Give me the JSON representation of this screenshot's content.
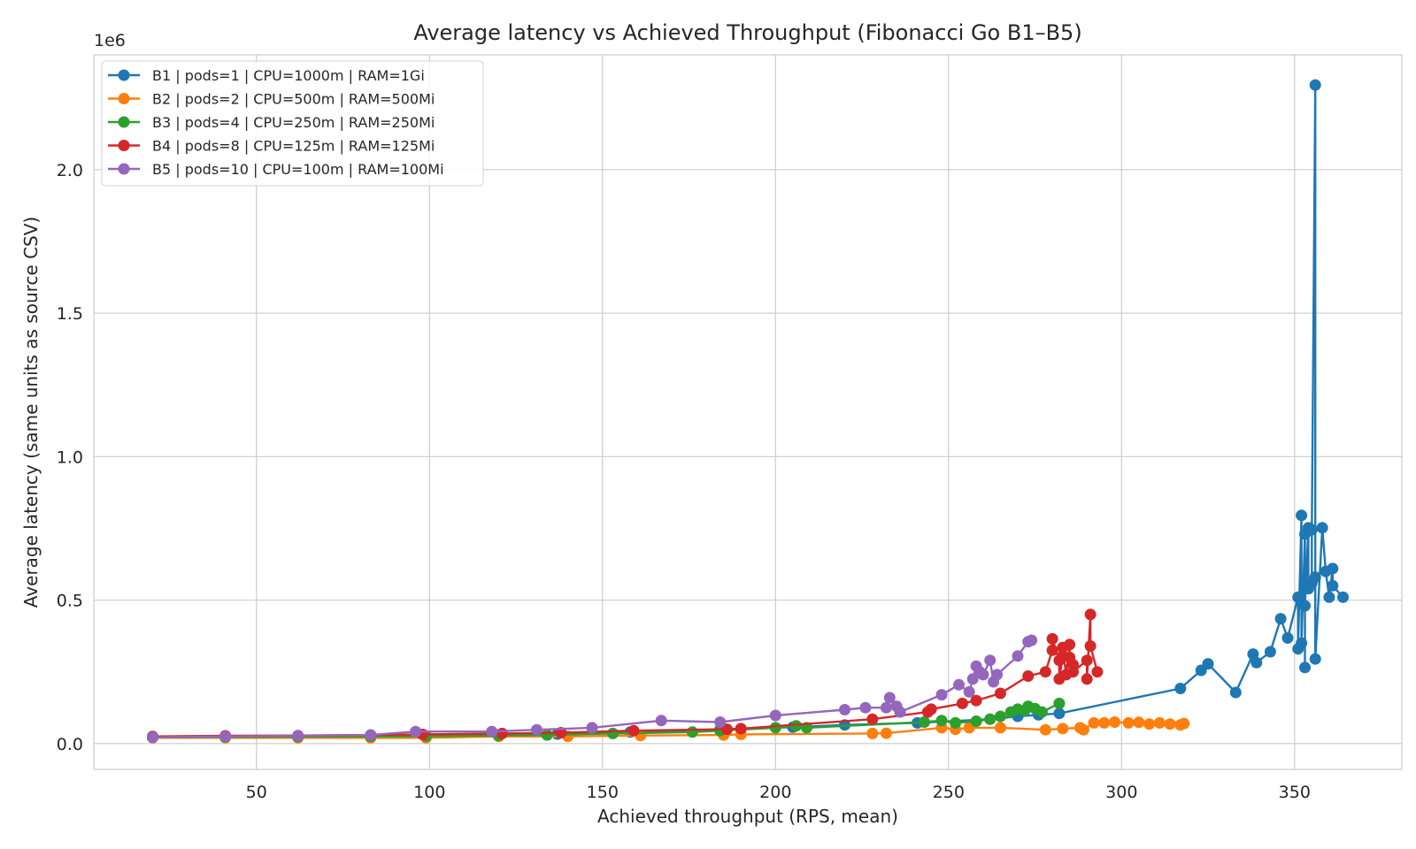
{
  "chart_data": {
    "type": "line",
    "title": "Average latency vs Achieved Throughput (Fibonacci Go B1–B5)",
    "xlabel": "Achieved throughput (RPS, mean)",
    "ylabel": "Average latency (same units as source CSV)",
    "y_offset_label": "1e6",
    "xlim": [
      3,
      381
    ],
    "ylim": [
      -90000,
      2400000
    ],
    "x_ticks": [
      50,
      100,
      150,
      200,
      250,
      300,
      350
    ],
    "x_tick_labels": [
      "50",
      "100",
      "150",
      "200",
      "250",
      "300",
      "350"
    ],
    "y_ticks": [
      0,
      500000,
      1000000,
      1500000,
      2000000
    ],
    "y_tick_labels": [
      "0.0",
      "0.5",
      "1.0",
      "1.5",
      "2.0"
    ],
    "grid": true,
    "legend_position": "top-left",
    "series": [
      {
        "name": "B1 | pods=1 | CPU=1000m | RAM=1Gi",
        "color": "#1f77b4",
        "points": [
          [
            20,
            22000
          ],
          [
            41,
            23000
          ],
          [
            62,
            24000
          ],
          [
            83,
            25000
          ],
          [
            99,
            27000
          ],
          [
            120,
            30000
          ],
          [
            137,
            33000
          ],
          [
            158,
            40000
          ],
          [
            184,
            50000
          ],
          [
            205,
            57000
          ],
          [
            220,
            65000
          ],
          [
            241,
            72000
          ],
          [
            262,
            85000
          ],
          [
            270,
            95000
          ],
          [
            276,
            100000
          ],
          [
            282,
            105000
          ],
          [
            317,
            192000
          ],
          [
            323,
            255000
          ],
          [
            325,
            278000
          ],
          [
            333,
            178000
          ],
          [
            338,
            312000
          ],
          [
            339,
            282000
          ],
          [
            343,
            320000
          ],
          [
            346,
            435000
          ],
          [
            348,
            368000
          ],
          [
            351,
            510000
          ],
          [
            351,
            330000
          ],
          [
            352,
            795000
          ],
          [
            352,
            350000
          ],
          [
            353,
            730000
          ],
          [
            353,
            265000
          ],
          [
            353,
            480000
          ],
          [
            354,
            752000
          ],
          [
            354,
            540000
          ],
          [
            355,
            560000
          ],
          [
            355,
            745000
          ],
          [
            356,
            2295000
          ],
          [
            356,
            580000
          ],
          [
            356,
            295000
          ],
          [
            358,
            752000
          ],
          [
            359,
            600000
          ],
          [
            360,
            510000
          ],
          [
            361,
            610000
          ],
          [
            361,
            550000
          ],
          [
            364,
            510000
          ]
        ]
      },
      {
        "name": "B2 | pods=2 | CPU=500m | RAM=500Mi",
        "color": "#ff7f0e",
        "points": [
          [
            20,
            20000
          ],
          [
            41,
            20000
          ],
          [
            62,
            20000
          ],
          [
            83,
            20000
          ],
          [
            99,
            20000
          ],
          [
            120,
            25000
          ],
          [
            140,
            25000
          ],
          [
            161,
            28000
          ],
          [
            185,
            30000
          ],
          [
            190,
            32000
          ],
          [
            228,
            35000
          ],
          [
            232,
            36000
          ],
          [
            248,
            55000
          ],
          [
            252,
            50000
          ],
          [
            256,
            55000
          ],
          [
            265,
            55000
          ],
          [
            278,
            48000
          ],
          [
            283,
            52000
          ],
          [
            288,
            55000
          ],
          [
            289,
            48000
          ],
          [
            292,
            72000
          ],
          [
            295,
            72000
          ],
          [
            298,
            75000
          ],
          [
            302,
            72000
          ],
          [
            305,
            74000
          ],
          [
            308,
            68000
          ],
          [
            311,
            72000
          ],
          [
            314,
            68000
          ],
          [
            317,
            65000
          ],
          [
            318,
            70000
          ]
        ]
      },
      {
        "name": "B3 | pods=4 | CPU=250m | RAM=250Mi",
        "color": "#2ca02c",
        "points": [
          [
            20,
            22000
          ],
          [
            41,
            23000
          ],
          [
            62,
            24000
          ],
          [
            83,
            25000
          ],
          [
            99,
            26000
          ],
          [
            120,
            28000
          ],
          [
            134,
            30000
          ],
          [
            153,
            35000
          ],
          [
            176,
            40000
          ],
          [
            184,
            45000
          ],
          [
            200,
            55000
          ],
          [
            206,
            62000
          ],
          [
            209,
            55000
          ],
          [
            243,
            75000
          ],
          [
            248,
            80000
          ],
          [
            252,
            72000
          ],
          [
            258,
            78000
          ],
          [
            262,
            85000
          ],
          [
            265,
            95000
          ],
          [
            268,
            110000
          ],
          [
            270,
            120000
          ],
          [
            272,
            115000
          ],
          [
            273,
            130000
          ],
          [
            275,
            122000
          ],
          [
            277,
            110000
          ],
          [
            282,
            140000
          ]
        ]
      },
      {
        "name": "B4 | pods=8 | CPU=125m | RAM=125Mi",
        "color": "#d62728",
        "points": [
          [
            20,
            25000
          ],
          [
            41,
            27000
          ],
          [
            62,
            28000
          ],
          [
            83,
            30000
          ],
          [
            98,
            32000
          ],
          [
            121,
            35000
          ],
          [
            138,
            38000
          ],
          [
            159,
            45000
          ],
          [
            186,
            50000
          ],
          [
            190,
            52000
          ],
          [
            228,
            85000
          ],
          [
            244,
            110000
          ],
          [
            245,
            120000
          ],
          [
            254,
            140000
          ],
          [
            258,
            150000
          ],
          [
            265,
            175000
          ],
          [
            273,
            235000
          ],
          [
            278,
            250000
          ],
          [
            280,
            325000
          ],
          [
            280,
            365000
          ],
          [
            282,
            290000
          ],
          [
            282,
            225000
          ],
          [
            283,
            305000
          ],
          [
            283,
            335000
          ],
          [
            284,
            240000
          ],
          [
            285,
            345000
          ],
          [
            285,
            300000
          ],
          [
            286,
            275000
          ],
          [
            286,
            250000
          ],
          [
            290,
            290000
          ],
          [
            290,
            225000
          ],
          [
            291,
            450000
          ],
          [
            291,
            340000
          ],
          [
            293,
            250000
          ]
        ]
      },
      {
        "name": "B5 | pods=10 | CPU=100m | RAM=100Mi",
        "color": "#9467bd",
        "points": [
          [
            20,
            22000
          ],
          [
            41,
            25000
          ],
          [
            62,
            27000
          ],
          [
            83,
            30000
          ],
          [
            96,
            42000
          ],
          [
            118,
            42000
          ],
          [
            131,
            48000
          ],
          [
            147,
            55000
          ],
          [
            167,
            80000
          ],
          [
            184,
            75000
          ],
          [
            200,
            98000
          ],
          [
            220,
            118000
          ],
          [
            226,
            125000
          ],
          [
            232,
            125000
          ],
          [
            233,
            160000
          ],
          [
            235,
            130000
          ],
          [
            236,
            110000
          ],
          [
            248,
            170000
          ],
          [
            253,
            205000
          ],
          [
            256,
            180000
          ],
          [
            257,
            225000
          ],
          [
            258,
            270000
          ],
          [
            259,
            250000
          ],
          [
            260,
            240000
          ],
          [
            262,
            290000
          ],
          [
            263,
            215000
          ],
          [
            264,
            240000
          ],
          [
            270,
            305000
          ],
          [
            273,
            355000
          ],
          [
            274,
            360000
          ]
        ]
      }
    ]
  }
}
